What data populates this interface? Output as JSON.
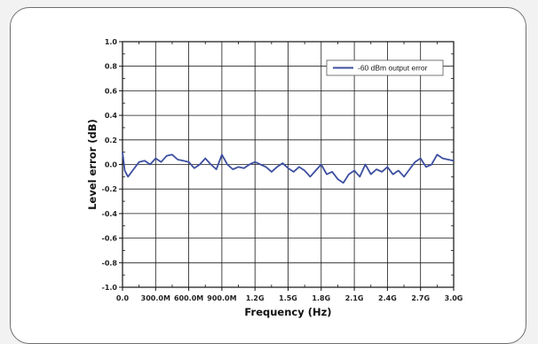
{
  "chart_data": {
    "type": "line",
    "xlabel": "Frequency (Hz)",
    "ylabel": "Level error (dB)",
    "xlim": [
      0,
      3.0
    ],
    "ylim": [
      -1.0,
      1.0
    ],
    "grid": true,
    "legend_position": "top-right",
    "x_tick_values": [
      0,
      0.3,
      0.6,
      0.9,
      1.2,
      1.5,
      1.8,
      2.1,
      2.4,
      2.7,
      3.0
    ],
    "x_tick_labels": [
      "0.0",
      "300.0M",
      "600.0M",
      "900.0M",
      "1.2G",
      "1.5G",
      "1.8G",
      "2.1G",
      "2.4G",
      "2.7G",
      "3.0G"
    ],
    "y_tick_values": [
      1.0,
      0.8,
      0.6,
      0.4,
      0.2,
      0.0,
      -0.2,
      -0.4,
      -0.6,
      -0.8,
      -1.0
    ],
    "y_tick_labels": [
      "1.0",
      "0.8",
      "0.6",
      "0.4",
      "0.2",
      "0.0",
      "-0.2",
      "-0.4",
      "-0.6",
      "-0.8",
      "-1.0"
    ],
    "series": [
      {
        "name": "-60 dBm output error",
        "color": "#3d4fa0",
        "x": [
          0.0,
          0.02,
          0.05,
          0.1,
          0.15,
          0.2,
          0.25,
          0.3,
          0.35,
          0.4,
          0.45,
          0.5,
          0.55,
          0.6,
          0.65,
          0.7,
          0.75,
          0.8,
          0.85,
          0.9,
          0.95,
          1.0,
          1.05,
          1.1,
          1.15,
          1.2,
          1.25,
          1.3,
          1.35,
          1.4,
          1.45,
          1.5,
          1.55,
          1.6,
          1.65,
          1.7,
          1.75,
          1.8,
          1.85,
          1.9,
          1.95,
          2.0,
          2.05,
          2.1,
          2.15,
          2.2,
          2.25,
          2.3,
          2.35,
          2.4,
          2.45,
          2.5,
          2.55,
          2.6,
          2.65,
          2.7,
          2.75,
          2.8,
          2.85,
          2.9,
          2.95,
          3.0
        ],
        "y": [
          0.1,
          -0.05,
          -0.1,
          -0.04,
          0.02,
          0.03,
          0.0,
          0.05,
          0.02,
          0.07,
          0.08,
          0.04,
          0.03,
          0.02,
          -0.03,
          0.0,
          0.05,
          0.0,
          -0.04,
          0.08,
          0.0,
          -0.04,
          -0.02,
          -0.03,
          0.0,
          0.02,
          0.0,
          -0.02,
          -0.06,
          -0.02,
          0.01,
          -0.03,
          -0.06,
          -0.02,
          -0.05,
          -0.1,
          -0.05,
          0.0,
          -0.08,
          -0.06,
          -0.12,
          -0.15,
          -0.08,
          -0.05,
          -0.1,
          0.0,
          -0.08,
          -0.04,
          -0.06,
          -0.02,
          -0.08,
          -0.05,
          -0.1,
          -0.04,
          0.02,
          0.05,
          -0.02,
          0.0,
          0.08,
          0.05,
          0.04,
          0.03
        ]
      }
    ]
  }
}
